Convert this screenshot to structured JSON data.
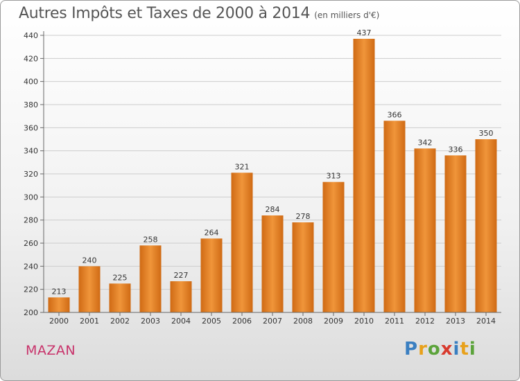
{
  "title": "Autres Impôts et Taxes de 2000 à 2014",
  "subtitle": "(en milliers d'€)",
  "commune": "MAZAN",
  "logo": {
    "letters": [
      "P",
      "r",
      "o",
      "x",
      "i",
      "t",
      "i"
    ],
    "colors": [
      "#3a7fc1",
      "#e8a11b",
      "#5ba33a",
      "#d83a2e",
      "#3a7fc1",
      "#e8a11b",
      "#5ba33a"
    ]
  },
  "colors": {
    "bar": "#f0953a",
    "bar_dark": "#cf6a14",
    "grid": "#cccccc",
    "axis": "#666666"
  },
  "chart_data": {
    "type": "bar",
    "categories": [
      "2000",
      "2001",
      "2002",
      "2003",
      "2004",
      "2005",
      "2006",
      "2007",
      "2008",
      "2009",
      "2010",
      "2011",
      "2012",
      "2013",
      "2014"
    ],
    "values": [
      213,
      240,
      225,
      258,
      227,
      264,
      321,
      284,
      278,
      313,
      437,
      366,
      342,
      336,
      350
    ],
    "ylim": [
      200,
      440
    ],
    "yticks": [
      200,
      220,
      240,
      260,
      280,
      300,
      320,
      340,
      360,
      380,
      400,
      420,
      440
    ],
    "grid": true,
    "legend": "none"
  }
}
